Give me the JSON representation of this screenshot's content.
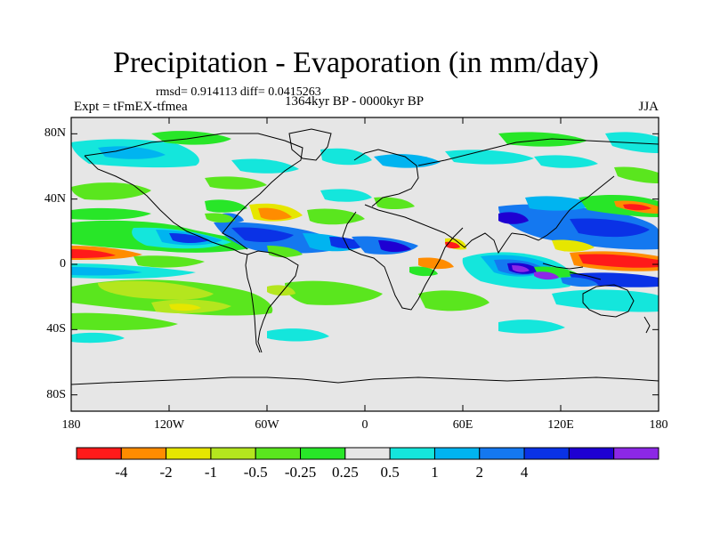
{
  "title": "Precipitation - Evaporation (in mm/day)",
  "stats": "rmsd= 0.914113 diff= 0.0415263",
  "period": "1364kyr BP - 0000kyr BP",
  "experiment": "Expt = tFmEX-tfmea",
  "season": "JJA",
  "y_ticks": [
    {
      "label": "80N",
      "lat": 80
    },
    {
      "label": "40N",
      "lat": 40
    },
    {
      "label": "0",
      "lat": 0
    },
    {
      "label": "40S",
      "lat": -40
    },
    {
      "label": "80S",
      "lat": -80
    }
  ],
  "x_ticks": [
    {
      "label": "180",
      "lon": -180
    },
    {
      "label": "120W",
      "lon": -120
    },
    {
      "label": "60W",
      "lon": -60
    },
    {
      "label": "0",
      "lon": 0
    },
    {
      "label": "60E",
      "lon": 60
    },
    {
      "label": "120E",
      "lon": 120
    },
    {
      "label": "180",
      "lon": 180
    }
  ],
  "colorbar": {
    "colors": [
      "#ff1a1a",
      "#ff8c00",
      "#e6e600",
      "#b4e61e",
      "#5ae61e",
      "#28e628",
      "#e6e6e6",
      "#14e6dc",
      "#00b4f0",
      "#1478f0",
      "#0a32e6",
      "#1e00d2",
      "#8c28e6"
    ],
    "labels": [
      "-4",
      "-2",
      "-1",
      "-0.5",
      "-0.25",
      "0.25",
      "0.5",
      "1",
      "2",
      "4"
    ]
  },
  "colors": {
    "background": "#e6e6e6",
    "coast": "#000000"
  }
}
